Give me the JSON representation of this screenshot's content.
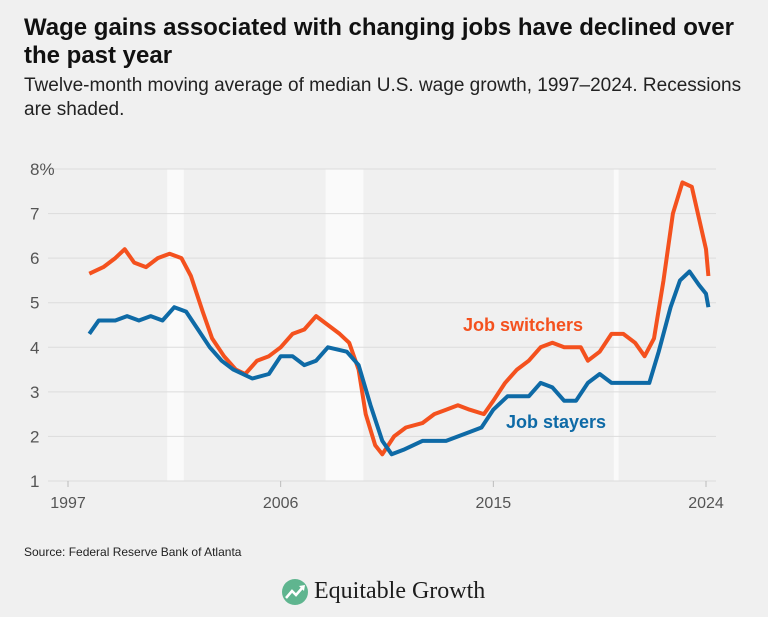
{
  "title": "Wage gains associated with changing jobs have declined over the past year",
  "subtitle": "Twelve-month moving average of median U.S. wage growth, 1997–2024. Recessions are shaded.",
  "source": "Source: Federal Reserve Bank of Atlanta",
  "logo": "Equitable Growth",
  "chart_data": {
    "type": "line",
    "xlim": [
      1997,
      2024
    ],
    "ylim": [
      1,
      8
    ],
    "x_ticks": [
      "1997",
      "2006",
      "2015",
      "2024"
    ],
    "y_ticks": [
      "1",
      "2",
      "3",
      "4",
      "5",
      "6",
      "7",
      "8%"
    ],
    "grid": true,
    "recessions": [
      [
        2001.2,
        2001.9
      ],
      [
        2007.9,
        2009.5
      ],
      [
        2020.1,
        2020.3
      ]
    ],
    "series": [
      {
        "name": "Job switchers",
        "color": "#f4511e",
        "points": [
          [
            1997.9,
            5.65
          ],
          [
            1998.5,
            5.8
          ],
          [
            1999.0,
            6.0
          ],
          [
            1999.4,
            6.2
          ],
          [
            1999.8,
            5.9
          ],
          [
            2000.3,
            5.8
          ],
          [
            2000.8,
            6.0
          ],
          [
            2001.3,
            6.1
          ],
          [
            2001.8,
            6.0
          ],
          [
            2002.2,
            5.6
          ],
          [
            2002.7,
            4.8
          ],
          [
            2003.1,
            4.2
          ],
          [
            2003.6,
            3.8
          ],
          [
            2004.1,
            3.5
          ],
          [
            2004.5,
            3.4
          ],
          [
            2005.0,
            3.7
          ],
          [
            2005.5,
            3.8
          ],
          [
            2006.0,
            4.0
          ],
          [
            2006.5,
            4.3
          ],
          [
            2007.0,
            4.4
          ],
          [
            2007.5,
            4.7
          ],
          [
            2008.0,
            4.5
          ],
          [
            2008.5,
            4.3
          ],
          [
            2008.9,
            4.1
          ],
          [
            2009.3,
            3.5
          ],
          [
            2009.6,
            2.5
          ],
          [
            2010.0,
            1.8
          ],
          [
            2010.3,
            1.6
          ],
          [
            2010.8,
            2.0
          ],
          [
            2011.3,
            2.2
          ],
          [
            2012.0,
            2.3
          ],
          [
            2012.5,
            2.5
          ],
          [
            2013.0,
            2.6
          ],
          [
            2013.5,
            2.7
          ],
          [
            2014.0,
            2.6
          ],
          [
            2014.6,
            2.5
          ],
          [
            2015.0,
            2.8
          ],
          [
            2015.5,
            3.2
          ],
          [
            2016.0,
            3.5
          ],
          [
            2016.5,
            3.7
          ],
          [
            2017.0,
            4.0
          ],
          [
            2017.5,
            4.1
          ],
          [
            2018.0,
            4.0
          ],
          [
            2018.7,
            4.0
          ],
          [
            2019.0,
            3.7
          ],
          [
            2019.5,
            3.9
          ],
          [
            2020.0,
            4.3
          ],
          [
            2020.5,
            4.3
          ],
          [
            2021.0,
            4.1
          ],
          [
            2021.4,
            3.8
          ],
          [
            2021.8,
            4.2
          ],
          [
            2022.2,
            5.5
          ],
          [
            2022.6,
            7.0
          ],
          [
            2023.0,
            7.7
          ],
          [
            2023.4,
            7.6
          ],
          [
            2023.7,
            6.9
          ],
          [
            2024.0,
            6.2
          ],
          [
            2024.1,
            5.6
          ]
        ]
      },
      {
        "name": "Job stayers",
        "color": "#0e6aa6",
        "points": [
          [
            1997.9,
            4.3
          ],
          [
            1998.3,
            4.6
          ],
          [
            1999.0,
            4.6
          ],
          [
            1999.5,
            4.7
          ],
          [
            2000.0,
            4.6
          ],
          [
            2000.5,
            4.7
          ],
          [
            2001.0,
            4.6
          ],
          [
            2001.5,
            4.9
          ],
          [
            2002.0,
            4.8
          ],
          [
            2002.5,
            4.4
          ],
          [
            2003.0,
            4.0
          ],
          [
            2003.5,
            3.7
          ],
          [
            2004.0,
            3.5
          ],
          [
            2004.8,
            3.3
          ],
          [
            2005.5,
            3.4
          ],
          [
            2006.0,
            3.8
          ],
          [
            2006.5,
            3.8
          ],
          [
            2007.0,
            3.6
          ],
          [
            2007.5,
            3.7
          ],
          [
            2008.0,
            4.0
          ],
          [
            2008.8,
            3.9
          ],
          [
            2009.3,
            3.6
          ],
          [
            2009.8,
            2.7
          ],
          [
            2010.3,
            1.9
          ],
          [
            2010.7,
            1.6
          ],
          [
            2011.2,
            1.7
          ],
          [
            2012.0,
            1.9
          ],
          [
            2013.0,
            1.9
          ],
          [
            2014.0,
            2.1
          ],
          [
            2014.5,
            2.2
          ],
          [
            2015.0,
            2.6
          ],
          [
            2015.6,
            2.9
          ],
          [
            2016.5,
            2.9
          ],
          [
            2017.0,
            3.2
          ],
          [
            2017.5,
            3.1
          ],
          [
            2018.0,
            2.8
          ],
          [
            2018.5,
            2.8
          ],
          [
            2019.0,
            3.2
          ],
          [
            2019.5,
            3.4
          ],
          [
            2020.0,
            3.2
          ],
          [
            2021.0,
            3.2
          ],
          [
            2021.6,
            3.2
          ],
          [
            2022.0,
            3.9
          ],
          [
            2022.5,
            4.9
          ],
          [
            2022.9,
            5.5
          ],
          [
            2023.3,
            5.7
          ],
          [
            2023.7,
            5.4
          ],
          [
            2024.0,
            5.2
          ],
          [
            2024.1,
            4.9
          ]
        ]
      }
    ]
  }
}
